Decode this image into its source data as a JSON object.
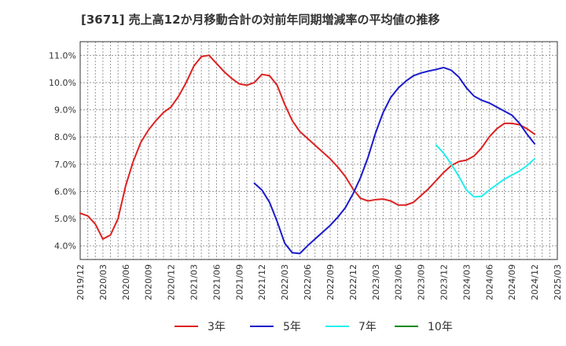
{
  "chart_data": {
    "type": "line",
    "title": "[3671]  売上高12か月移動合計の対前年同期増減率の平均値の推移",
    "xlabel": "",
    "ylabel": "",
    "x_start": "2019-12",
    "x_end": "2025-03",
    "x_ticks": [
      "2019/12",
      "2020/03",
      "2020/06",
      "2020/09",
      "2020/12",
      "2021/03",
      "2021/06",
      "2021/09",
      "2021/12",
      "2022/03",
      "2022/06",
      "2022/09",
      "2022/12",
      "2023/03",
      "2023/06",
      "2023/09",
      "2023/12",
      "2024/03",
      "2024/06",
      "2024/09",
      "2024/12",
      "2025/03"
    ],
    "y_ticks": [
      4.0,
      5.0,
      6.0,
      7.0,
      8.0,
      9.0,
      10.0,
      11.0
    ],
    "y_tick_labels": [
      "4.0%",
      "5.0%",
      "6.0%",
      "7.0%",
      "8.0%",
      "9.0%",
      "10.0%",
      "11.0%"
    ],
    "ylim": [
      3.5,
      11.5
    ],
    "grid": true,
    "legend_position": "bottom",
    "series": [
      {
        "name": "3年",
        "color": "#dd2222",
        "start": "2019-12",
        "values": [
          5.2,
          5.1,
          4.8,
          4.25,
          4.4,
          5.0,
          6.2,
          7.1,
          7.8,
          8.25,
          8.6,
          8.9,
          9.1,
          9.5,
          10.0,
          10.6,
          10.95,
          11.0,
          10.7,
          10.4,
          10.15,
          9.95,
          9.9,
          10.0,
          10.3,
          10.25,
          9.9,
          9.2,
          8.6,
          8.2,
          7.95,
          7.7,
          7.45,
          7.2,
          6.9,
          6.55,
          6.1,
          5.75,
          5.65,
          5.7,
          5.72,
          5.65,
          5.5,
          5.5,
          5.6,
          5.85,
          6.1,
          6.4,
          6.7,
          6.95,
          7.1,
          7.15,
          7.3,
          7.6,
          8.0,
          8.3,
          8.5,
          8.5,
          8.45,
          8.3,
          8.1
        ]
      },
      {
        "name": "5年",
        "color": "#1a1acc",
        "start": "2021-11",
        "values": [
          6.3,
          6.05,
          5.6,
          4.9,
          4.1,
          3.75,
          3.72,
          4.0,
          4.25,
          4.5,
          4.75,
          5.05,
          5.4,
          5.9,
          6.5,
          7.25,
          8.15,
          8.9,
          9.45,
          9.8,
          10.05,
          10.25,
          10.35,
          10.42,
          10.48,
          10.55,
          10.45,
          10.2,
          9.8,
          9.5,
          9.35,
          9.25,
          9.1,
          8.95,
          8.8,
          8.5,
          8.1,
          7.75
        ]
      },
      {
        "name": "7年",
        "color": "#22eeee",
        "start": "2023-11",
        "values": [
          7.7,
          7.4,
          7.0,
          6.55,
          6.05,
          5.8,
          5.82,
          6.05,
          6.25,
          6.45,
          6.6,
          6.75,
          6.95,
          7.2
        ]
      },
      {
        "name": "10年",
        "color": "#118811",
        "start": "2019-12",
        "values": []
      }
    ]
  }
}
